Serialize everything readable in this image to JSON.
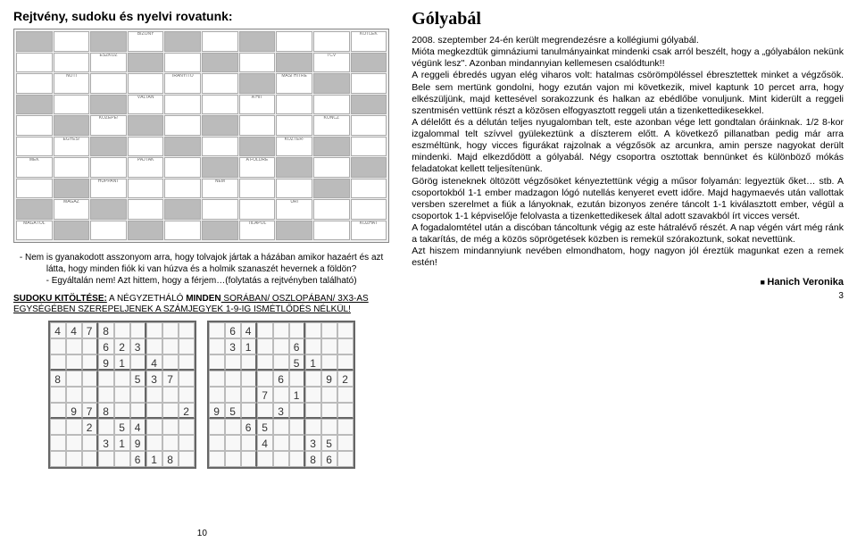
{
  "left": {
    "title": "Rejtvény, sudoku és nyelvi rovatunk:",
    "crossword_hints": [
      "BIZONY",
      "KÖTLEK",
      "ESZKÖZ",
      "TCV",
      "NÖTI",
      "IRÁNYÍTÓ",
      "MÁSI HITRE",
      "VÁLTAN",
      "A HIT",
      "KÖZÉPE!",
      "KONCZ",
      "EGYES!",
      "KÖZTER-",
      "MEK",
      "PAJTÁK",
      "A FÖLDRE",
      "HUPPANT",
      "NEM",
      "MAGÁZ",
      "ŰRI",
      "MAGÁTÓL",
      "TILÁPOL",
      "KOZHAT",
      "JÁRDIR",
      "A POÉN",
      "1. RÉSZE",
      "MEGMU",
      "TATHAT",
      "JA A",
      "HELYES",
      "IRÁNYT",
      "SÖTÉT",
      "IDŐSZAK",
      "TOVÁBB",
      "ÖSZTÖN",
      "ZÖ",
      "VANÁDIUM",
      "VEGYJELE",
      "REALIZÁL",
      "/A/",
      "LATIN",
      "KÖTŐSZÓ",
      "IDŐSZERŰ",
      "NEVELŐ",
      "PARIOS",
      "BESZÉD",
      "A MÁSIK",
      "SZINTÉN",
      "(KÉT SZÓ)",
      "FEJETLEN",
      "IDŐZŐ",
      "A",
      "TETEJÉRE!",
      "ARAB",
      "KÖZEPE!",
      "AZURÁN",
      "VEGYJELE",
      "INNEN",
      "A POÉN",
      "2. RÉSZE",
      "AZ ABRAN",
      "JELE",
      "A REN-",
      "GETEG",
      "BEN",
      "PÁRATLAN",
      "IDEÁL",
      "GITAROZÓ",
      "KEZV",
      "ILONA",
      "BECÉZVE"
    ],
    "riddle_p1": "- Nem is gyanakodott asszonyom arra, hogy tolvajok jártak a házában amikor hazaért és azt látta, hogy minden fiók ki van húzva és a holmik szanaszét hevernek a földön?",
    "riddle_p2": "- Egyáltalán nem! Azt hittem, hogy a férjem…(folytatás a rejtvényben található)",
    "sudoku_line1": "SUDOKU KITÖLTÉSE:",
    "sudoku_line2": " A NÉGYZETHÁLÓ ",
    "sudoku_line3": "MINDEN",
    "sudoku_line4": " SORÁBAN/ OSZLOPÁBAN/ 3X3-AS EGYSÉGÉBEN SZEREPELJENEK A SZÁMJEGYEK 1-9-IG ISMÉTLŐDÉS NÉLKÜL!",
    "sudoku1": [
      [
        "4",
        "4",
        "7",
        "8",
        "",
        "",
        "",
        "",
        ""
      ],
      [
        "",
        "",
        "",
        "6",
        "2",
        "3",
        "",
        "",
        ""
      ],
      [
        "",
        "",
        "",
        "9",
        "1",
        "",
        "4",
        "",
        ""
      ],
      [
        "8",
        "",
        "",
        "",
        "",
        "5",
        "3",
        "7",
        ""
      ],
      [
        "",
        "",
        "",
        "",
        "",
        "",
        "",
        "",
        ""
      ],
      [
        "",
        "9",
        "7",
        "8",
        "",
        "",
        "",
        "",
        "2"
      ],
      [
        "",
        "",
        "2",
        "",
        "5",
        "4",
        "",
        "",
        ""
      ],
      [
        "",
        "",
        "",
        "3",
        "1",
        "9",
        "",
        "",
        ""
      ],
      [
        "",
        "",
        "",
        "",
        "",
        "6",
        "1",
        "8",
        ""
      ]
    ],
    "sudoku2": [
      [
        "",
        "6",
        "4",
        "",
        "",
        "",
        "",
        "",
        ""
      ],
      [
        "",
        "3",
        "1",
        "",
        "",
        "6",
        "",
        "",
        ""
      ],
      [
        "",
        "",
        "",
        "",
        "",
        "5",
        "1",
        "",
        ""
      ],
      [
        "",
        "",
        "",
        "",
        "6",
        "",
        "",
        "9",
        "2"
      ],
      [
        "",
        "",
        "",
        "7",
        "",
        "1",
        "",
        "",
        ""
      ],
      [
        "9",
        "5",
        "",
        "",
        "3",
        "",
        "",
        "",
        ""
      ],
      [
        "",
        "",
        "6",
        "5",
        "",
        "",
        "",
        "",
        ""
      ],
      [
        "",
        "",
        "",
        "4",
        "",
        "",
        "3",
        "5",
        ""
      ],
      [
        "",
        "",
        "",
        "",
        "",
        "",
        "8",
        "6",
        ""
      ]
    ],
    "page": "10"
  },
  "right": {
    "title": "Gólyabál",
    "paragraphs": [
      "2008. szeptember 24-én került megrendezésre a kollégiumi gólyabál.",
      "Mióta megkezdtük gimnáziumi tanulmányainkat mindenki csak arról beszélt, hogy a „gólyabálon nekünk végünk lesz\". Azonban mindannyian kellemesen csalódtunk!!",
      "A reggeli ébredés ugyan elég viharos volt: hatalmas csörömpöléssel ébresztettek minket a végzősök. Bele sem mertünk gondolni, hogy ezután vajon mi következik, mivel kaptunk 10 percet arra, hogy elkészüljünk, majd kettesével sorakozzunk és halkan az ebédlőbe vonuljunk. Mint kiderült a reggeli szentmisén vettünk részt a közösen elfogyasztott reggeli után a tizenkettedikesekkel.",
      "A délelőtt és a délután teljes nyugalomban telt, este azonban vége lett gondtalan óráinknak. 1/2 8-kor izgalommal telt szívvel gyülekeztünk a díszterem előtt. A következő pillanatban pedig már arra eszméltünk, hogy vicces figurákat rajzolnak a végzősök az arcunkra, amin persze nagyokat derült mindenki. Majd elkezdődött a gólyabál. Négy csoportra osztottak bennünket és különböző mókás feladatokat kellett teljesítenünk.",
      "Görög isteneknek öltözött végzősöket kényeztettünk végig a műsor folyamán: legyeztük őket… stb. A csoportokból 1-1 ember madzagon lógó nutellás kenyeret evett időre. Majd hagymaevés után vallottak versben szerelmet a fiúk a lányoknak, ezután bizonyos zenére táncolt 1-1 kiválasztott ember, végül a csoportok 1-1 képviselője felolvasta a tizenkettedikesek által adott szavakból írt vicces versét.",
      "A fogadalomtétel után a discóban táncoltunk végig az este hátralévő részét. A nap végén várt még ránk a takarítás, de még a közös söprögetések közben is remekül szórakoztunk, sokat nevettünk.",
      "Azt hiszem mindannyiunk nevében elmondhatom, hogy nagyon jól éreztük magunkat ezen a remek estén!"
    ],
    "author": "Hanich Veronika",
    "page": "3"
  }
}
